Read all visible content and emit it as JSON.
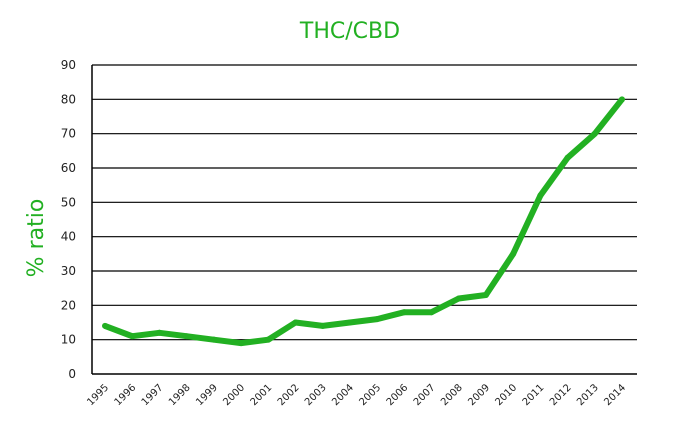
{
  "chart_data": {
    "type": "line",
    "title": "THC/CBD",
    "xlabel": "",
    "ylabel": "% ratio",
    "x": [
      "1995",
      "1996",
      "1997",
      "1998",
      "1999",
      "2000",
      "2001",
      "2002",
      "2003",
      "2004",
      "2005",
      "2006",
      "2007",
      "2008",
      "2009",
      "2010",
      "2011",
      "2012",
      "2013",
      "2014"
    ],
    "series": [
      {
        "values": [
          14,
          11,
          12,
          11,
          10,
          9,
          10,
          15,
          14,
          15,
          16,
          18,
          18,
          22,
          23,
          35,
          52,
          63,
          70,
          80
        ]
      }
    ],
    "ylim": [
      0,
      90
    ],
    "yticks": [
      "0",
      "10",
      "20",
      "30",
      "40",
      "50",
      "60",
      "70",
      "80",
      "90"
    ],
    "grid": "horizontal",
    "legend": "none",
    "colors": {
      "line": "#22b022",
      "title": "#22b022",
      "ylabel": "#22b022",
      "grid": "#000000",
      "axis": "#000000"
    }
  }
}
